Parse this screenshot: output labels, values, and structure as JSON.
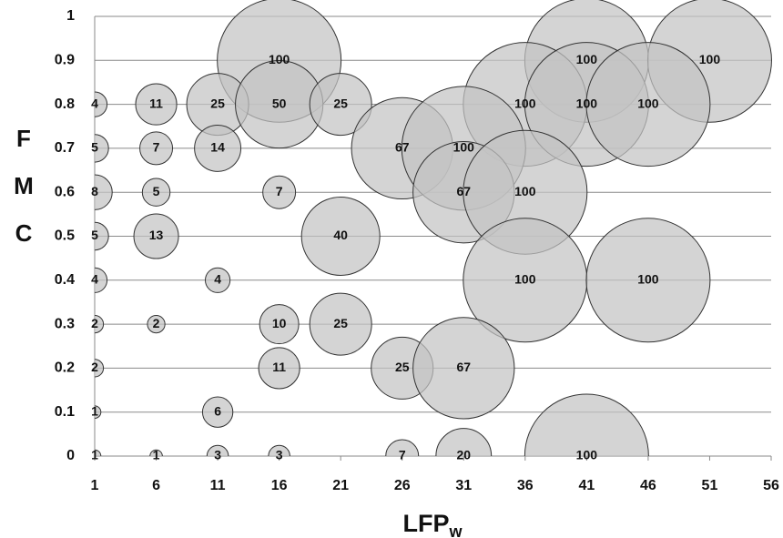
{
  "chart_data": {
    "type": "bubble",
    "x_label": "LFP",
    "x_label_subscript": "w",
    "y_label": "FMC",
    "xlim": [
      1,
      56
    ],
    "xticks": [
      1,
      6,
      11,
      16,
      21,
      26,
      31,
      36,
      41,
      46,
      51,
      56
    ],
    "ylim": [
      0,
      1
    ],
    "yticks": [
      0,
      0.1,
      0.2,
      0.3,
      0.4,
      0.5,
      0.6,
      0.7,
      0.8,
      0.9,
      1
    ],
    "grid": true,
    "series": [
      {
        "color": "#c4c4c4",
        "x": [
          16,
          41,
          51,
          1,
          6,
          11,
          16,
          21,
          36,
          41,
          46,
          1,
          6,
          11,
          26,
          31,
          1,
          6,
          16,
          31,
          36,
          1,
          6,
          21,
          1,
          11,
          36,
          46,
          1,
          6,
          16,
          21,
          1,
          16,
          26,
          31,
          1,
          11,
          1,
          6,
          11,
          16,
          26,
          31,
          41
        ],
        "values": [
          0.9,
          0.9,
          0.9,
          0.8,
          0.8,
          0.8,
          0.8,
          0.8,
          0.8,
          0.8,
          0.8,
          0.7,
          0.7,
          0.7,
          0.7,
          0.7,
          0.6,
          0.6,
          0.6,
          0.6,
          0.6,
          0.5,
          0.5,
          0.5,
          0.4,
          0.4,
          0.4,
          0.4,
          0.3,
          0.3,
          0.3,
          0.3,
          0.2,
          0.2,
          0.2,
          0.2,
          0.1,
          0.1,
          0,
          0,
          0,
          0,
          0,
          0,
          0
        ],
        "sizes": [
          100,
          100,
          100,
          4,
          11,
          25,
          50,
          25,
          100,
          100,
          100,
          5,
          7,
          14,
          67,
          100,
          8,
          5,
          7,
          67,
          100,
          5,
          13,
          40,
          4,
          4,
          100,
          100,
          2,
          2,
          10,
          25,
          2,
          11,
          25,
          67,
          1,
          6,
          1,
          1,
          3,
          3,
          7,
          20,
          100
        ]
      }
    ]
  }
}
